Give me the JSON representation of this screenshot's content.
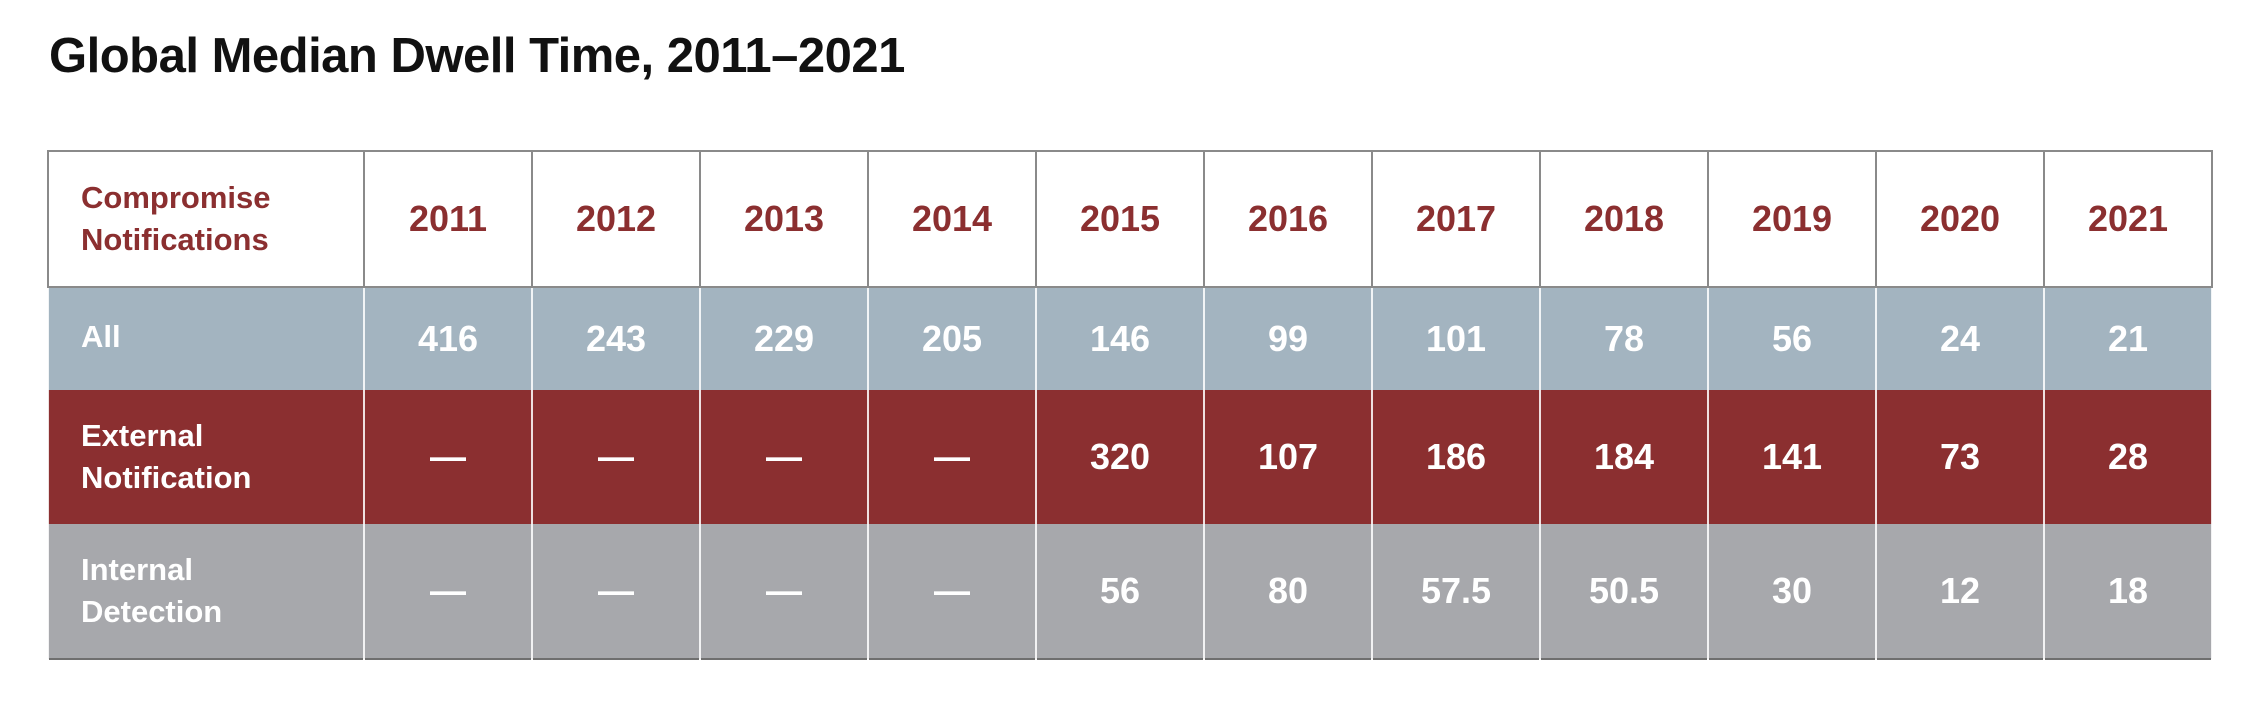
{
  "title": "Global Median Dwell Time, 2011–2021",
  "colors": {
    "header_text": "#8b2f30",
    "row_all_bg": "#a3b4c0",
    "row_external_bg": "#8b2f30",
    "row_internal_bg": "#a7a8ac",
    "cell_text": "#ffffff"
  },
  "table": {
    "corner_label_line1": "Compromise",
    "corner_label_line2": "Notifications",
    "years": [
      "2011",
      "2012",
      "2013",
      "2014",
      "2015",
      "2016",
      "2017",
      "2018",
      "2019",
      "2020",
      "2021"
    ],
    "rows": [
      {
        "label_line1": "All",
        "label_line2": "",
        "values": [
          "416",
          "243",
          "229",
          "205",
          "146",
          "99",
          "101",
          "78",
          "56",
          "24",
          "21"
        ]
      },
      {
        "label_line1": "External",
        "label_line2": "Notification",
        "values": [
          "—",
          "—",
          "—",
          "—",
          "320",
          "107",
          "186",
          "184",
          "141",
          "73",
          "28"
        ]
      },
      {
        "label_line1": "Internal",
        "label_line2": "Detection",
        "values": [
          "—",
          "—",
          "—",
          "—",
          "56",
          "80",
          "57.5",
          "50.5",
          "30",
          "12",
          "18"
        ]
      }
    ]
  }
}
